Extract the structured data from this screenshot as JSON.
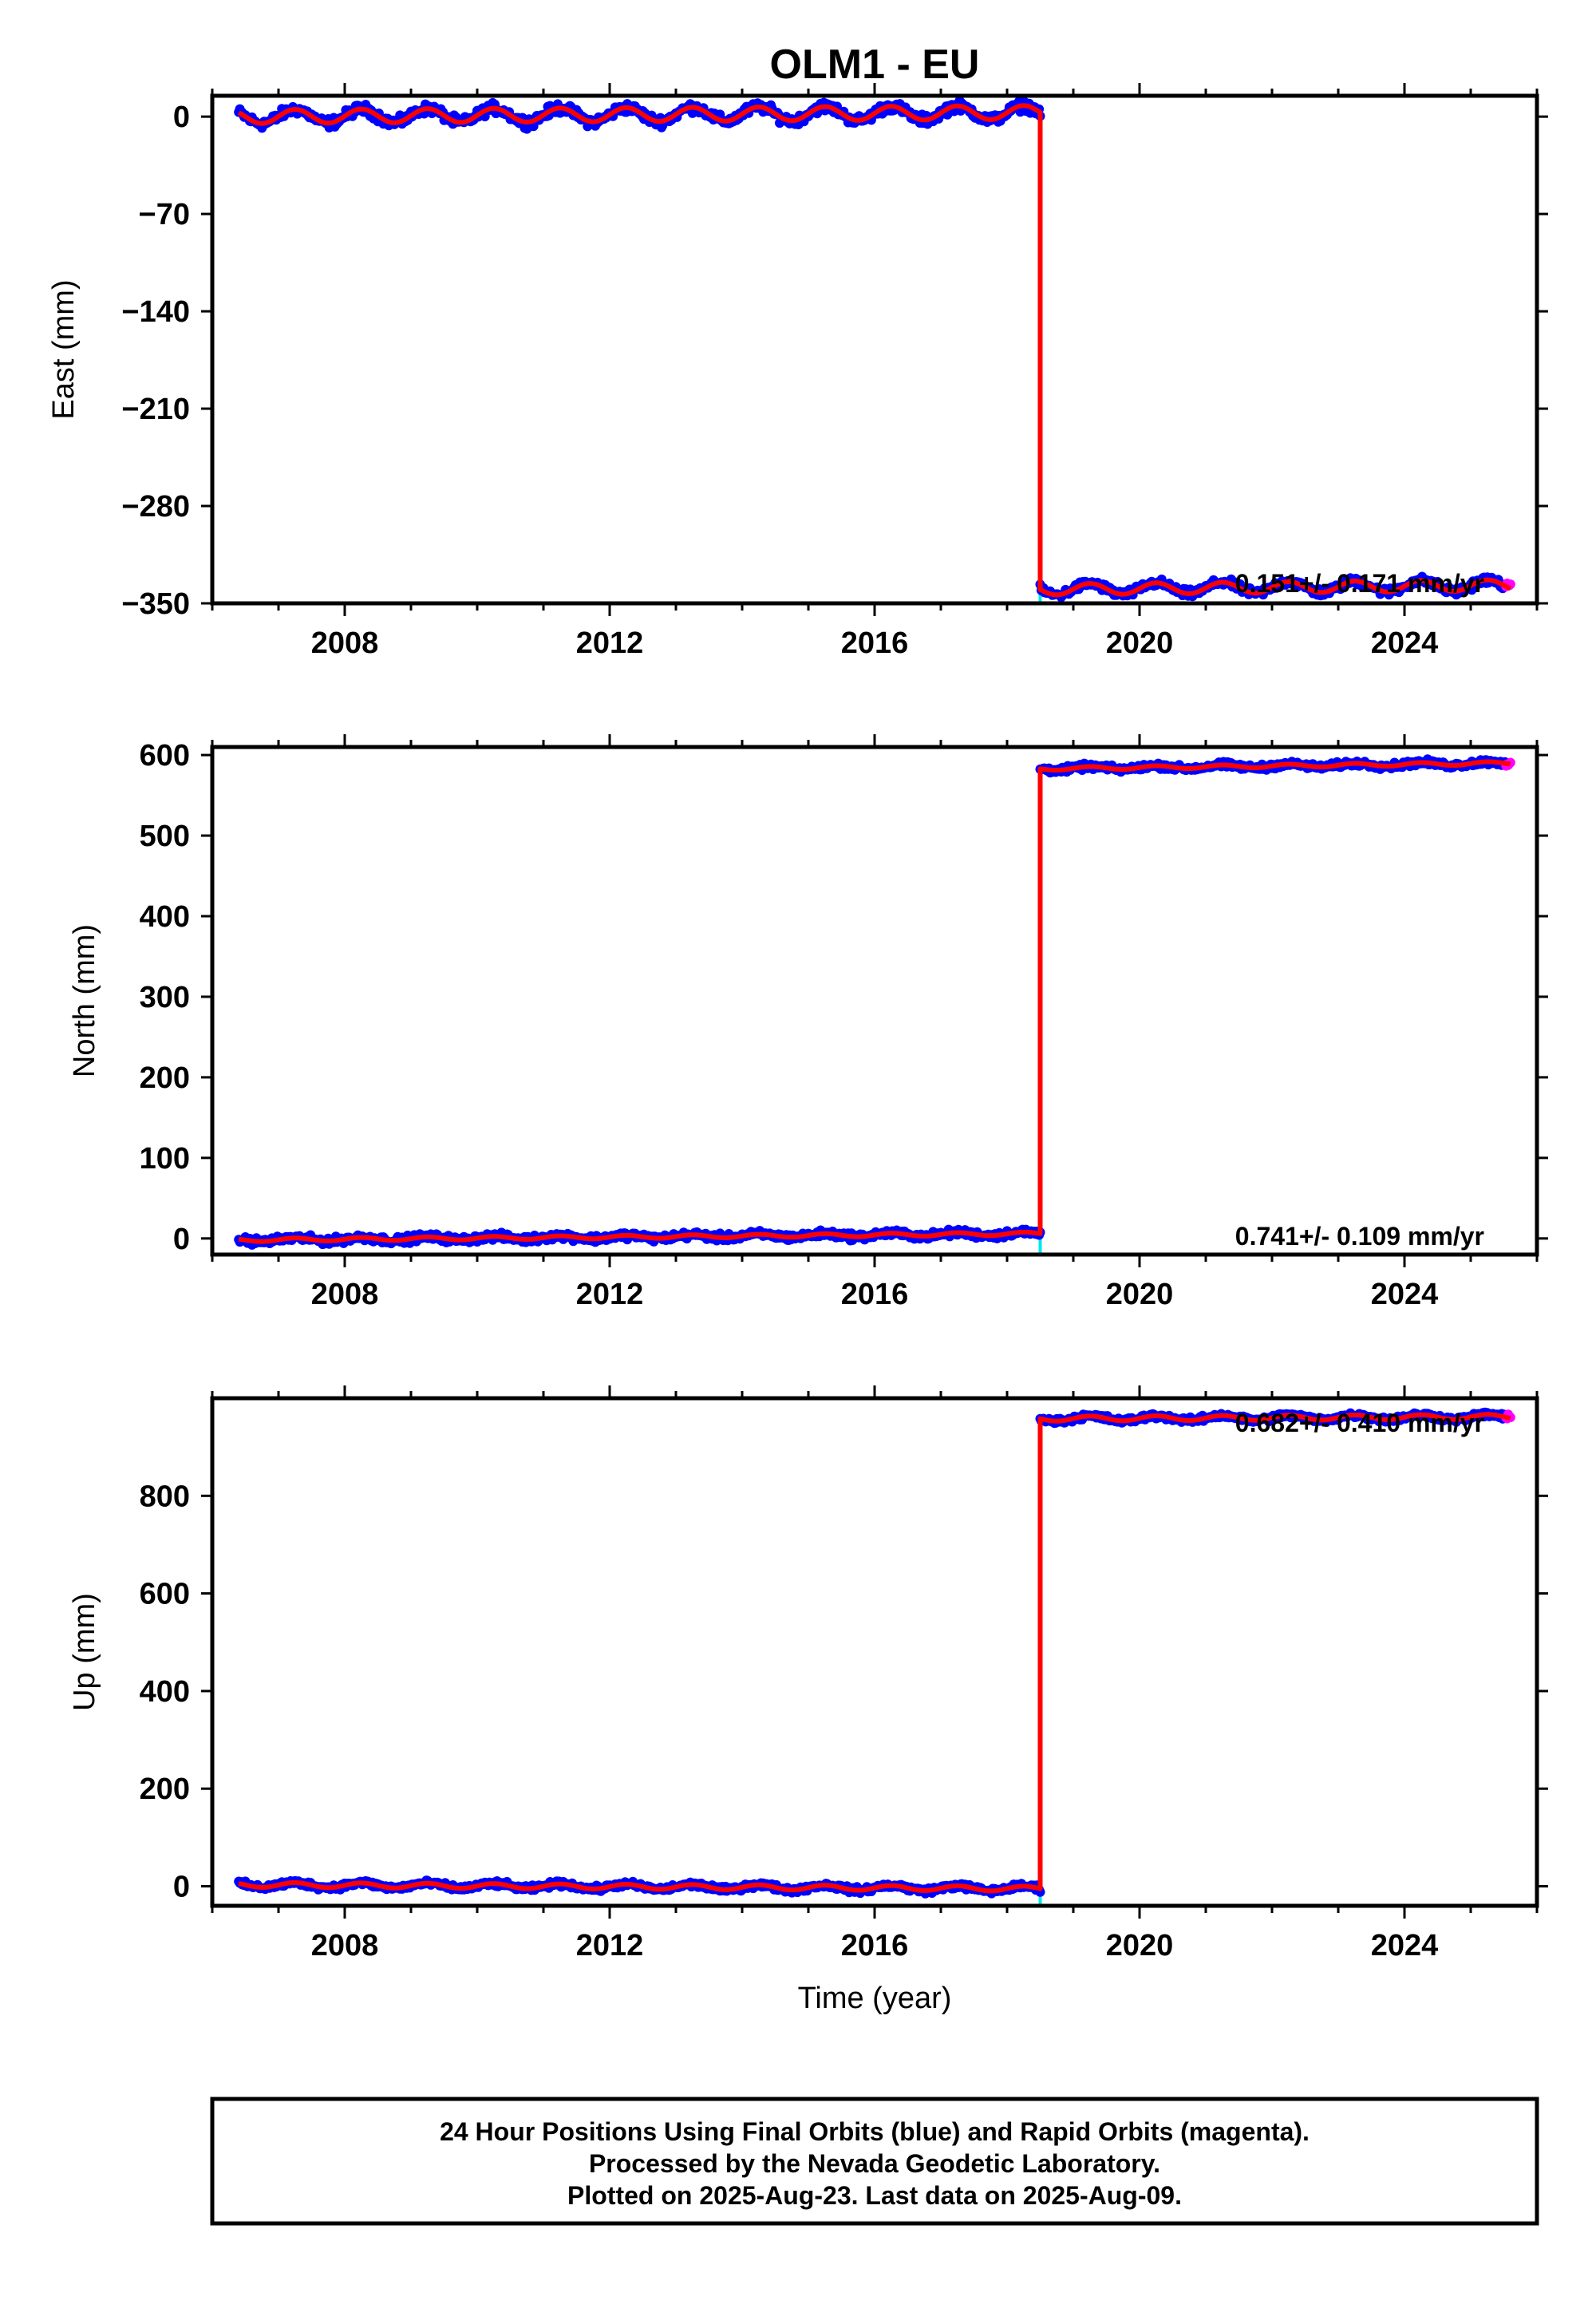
{
  "title": "OLM1 - EU",
  "xlabel": "Time (year)",
  "xlim": [
    2006.0,
    2026.0
  ],
  "x_ticks": [
    2008,
    2012,
    2016,
    2020,
    2024
  ],
  "x_tick_labels": [
    "2008",
    "2012",
    "2016",
    "2020",
    "2024"
  ],
  "colors": {
    "final_orbits": "#0000ff",
    "rapid_orbits": "#ff00ff",
    "model": "#ff0000",
    "offset_marker": "#00e5ee"
  },
  "offset_epoch": 2018.5,
  "last_data": 2025.6,
  "chart_data": [
    {
      "type": "line",
      "id": "east",
      "ylabel": "East (mm)",
      "ylim": [
        -350,
        15
      ],
      "y_ticks": [
        0,
        -70,
        -140,
        -210,
        -280,
        -350
      ],
      "y_tick_labels": [
        "0",
        "−70",
        "−140",
        "−210",
        "−280",
        "−350"
      ],
      "rate_label": "0.151+/- 0.171 mm/yr",
      "segments": [
        {
          "x_start": 2006.4,
          "x_end": 2018.5,
          "level_start": 0,
          "level_end": 3,
          "seasonal_amplitude": 5,
          "scatter": 2.5
        },
        {
          "x_start": 2018.5,
          "x_end": 2025.6,
          "level_start": -340,
          "level_end": -337,
          "seasonal_amplitude": 4,
          "scatter": 2
        }
      ]
    },
    {
      "type": "line",
      "id": "north",
      "ylabel": "North (mm)",
      "ylim": [
        -20,
        610
      ],
      "y_ticks": [
        0,
        100,
        200,
        300,
        400,
        500,
        600
      ],
      "y_tick_labels": [
        "0",
        "100",
        "200",
        "300",
        "400",
        "500",
        "600"
      ],
      "rate_label": "0.741+/- 0.109 mm/yr",
      "segments": [
        {
          "x_start": 2006.4,
          "x_end": 2018.5,
          "level_start": -2,
          "level_end": 6,
          "seasonal_amplitude": 2,
          "scatter": 3
        },
        {
          "x_start": 2018.5,
          "x_end": 2025.6,
          "level_start": 583,
          "level_end": 590,
          "seasonal_amplitude": 2,
          "scatter": 2.5
        }
      ]
    },
    {
      "type": "line",
      "id": "up",
      "ylabel": "Up (mm)",
      "ylim": [
        -40,
        1000
      ],
      "y_ticks": [
        0,
        200,
        400,
        600,
        800
      ],
      "y_tick_labels": [
        "0",
        "200",
        "400",
        "600",
        "800"
      ],
      "rate_label": "0.682+/- 0.410 mm/yr",
      "segments": [
        {
          "x_start": 2006.4,
          "x_end": 2018.5,
          "level_start": 3,
          "level_end": -5,
          "seasonal_amplitude": 5,
          "scatter": 4
        },
        {
          "x_start": 2018.5,
          "x_end": 2025.6,
          "level_start": 958,
          "level_end": 962,
          "seasonal_amplitude": 5,
          "scatter": 4
        }
      ]
    }
  ],
  "footer": {
    "line1": "24 Hour Positions Using Final Orbits (blue) and Rapid Orbits (magenta).",
    "line2": "Processed by the Nevada Geodetic Laboratory.",
    "line3": "Plotted on 2025-Aug-23. Last data on 2025-Aug-09."
  }
}
